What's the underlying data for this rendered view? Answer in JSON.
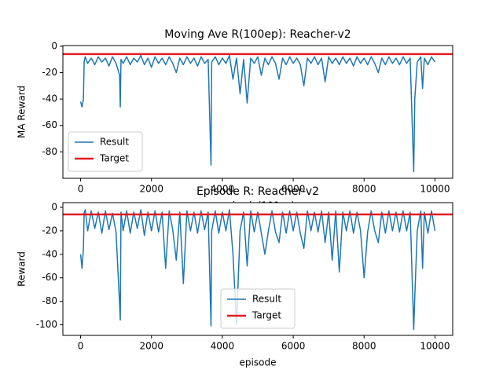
{
  "chart_data": [
    {
      "type": "line",
      "title": "Moving Ave R(100ep): Reacher-v2",
      "x_label": "episode(100ep)",
      "y_label": "MA Reward",
      "x": [
        0,
        40,
        80,
        100,
        130,
        200,
        300,
        400,
        500,
        600,
        700,
        800,
        900,
        1000,
        1100,
        1120,
        1140,
        1200,
        1300,
        1400,
        1500,
        1600,
        1700,
        1800,
        1900,
        2000,
        2100,
        2200,
        2300,
        2400,
        2500,
        2600,
        2700,
        2800,
        2900,
        3000,
        3100,
        3200,
        3300,
        3400,
        3500,
        3600,
        3680,
        3700,
        3800,
        3900,
        4000,
        4100,
        4200,
        4300,
        4400,
        4500,
        4600,
        4700,
        4800,
        4900,
        5000,
        5100,
        5200,
        5300,
        5400,
        5500,
        5600,
        5700,
        5800,
        5900,
        6000,
        6100,
        6200,
        6300,
        6400,
        6500,
        6600,
        6700,
        6800,
        6900,
        7000,
        7100,
        7200,
        7300,
        7400,
        7500,
        7600,
        7700,
        7800,
        7900,
        8000,
        8100,
        8200,
        8300,
        8400,
        8500,
        8600,
        8700,
        8800,
        8900,
        9000,
        9100,
        9200,
        9300,
        9400,
        9430,
        9500,
        9600,
        9650,
        9700,
        9800,
        9900,
        10000
      ],
      "series": [
        {
          "name": "Result",
          "color": "#1f77b4",
          "values": [
            -42,
            -46,
            -40,
            -12,
            -8,
            -13,
            -9,
            -14,
            -8,
            -12,
            -9,
            -15,
            -8,
            -13,
            -22,
            -46,
            -10,
            -13,
            -8,
            -14,
            -9,
            -12,
            -7,
            -14,
            -9,
            -16,
            -8,
            -13,
            -9,
            -14,
            -8,
            -13,
            -20,
            -9,
            -14,
            -8,
            -13,
            -9,
            -15,
            -8,
            -13,
            -10,
            -90,
            -12,
            -8,
            -14,
            -9,
            -13,
            -7,
            -25,
            -9,
            -36,
            -10,
            -43,
            -9,
            -13,
            -8,
            -22,
            -9,
            -14,
            -8,
            -13,
            -25,
            -9,
            -14,
            -8,
            -13,
            -9,
            -14,
            -30,
            -9,
            -13,
            -8,
            -14,
            -9,
            -27,
            -8,
            -13,
            -9,
            -14,
            -8,
            -13,
            -9,
            -15,
            -8,
            -13,
            -9,
            -14,
            -8,
            -13,
            -20,
            -9,
            -14,
            -8,
            -13,
            -9,
            -14,
            -8,
            -13,
            -9,
            -95,
            -40,
            -12,
            -8,
            -32,
            -9,
            -14,
            -8,
            -12
          ]
        }
      ],
      "target": {
        "name": "Target",
        "color": "#e41a1c",
        "value": -6
      },
      "xlim": [
        -500,
        10500
      ],
      "ylim": [
        -100,
        0.5
      ],
      "xticks": [
        0,
        2000,
        4000,
        6000,
        8000,
        10000
      ],
      "yticks": [
        0,
        -20,
        -40,
        -60,
        -80
      ],
      "legend_position": "lower left"
    },
    {
      "type": "line",
      "title": "Episode R: Reacher-v2",
      "x_label": "episode",
      "y_label": "Reward",
      "x": [
        0,
        40,
        80,
        100,
        130,
        200,
        300,
        400,
        500,
        600,
        700,
        800,
        900,
        1000,
        1100,
        1120,
        1140,
        1200,
        1300,
        1400,
        1500,
        1600,
        1700,
        1800,
        1900,
        2000,
        2100,
        2200,
        2300,
        2400,
        2500,
        2600,
        2700,
        2800,
        2900,
        3000,
        3100,
        3200,
        3300,
        3400,
        3500,
        3600,
        3680,
        3700,
        3800,
        3900,
        4000,
        4100,
        4200,
        4300,
        4400,
        4500,
        4600,
        4700,
        4800,
        4900,
        5000,
        5100,
        5200,
        5300,
        5400,
        5500,
        5600,
        5700,
        5800,
        5900,
        6000,
        6100,
        6200,
        6300,
        6400,
        6500,
        6600,
        6700,
        6800,
        6900,
        7000,
        7100,
        7200,
        7300,
        7400,
        7500,
        7600,
        7700,
        7800,
        7900,
        8000,
        8100,
        8200,
        8300,
        8400,
        8500,
        8600,
        8700,
        8800,
        8900,
        9000,
        9100,
        9200,
        9300,
        9400,
        9430,
        9500,
        9600,
        9650,
        9700,
        9800,
        9900,
        10000
      ],
      "series": [
        {
          "name": "Result",
          "color": "#1f77b4",
          "values": [
            -40,
            -52,
            -35,
            -5,
            -2,
            -20,
            -3,
            -18,
            -4,
            -22,
            -3,
            -19,
            -5,
            -21,
            -82,
            -96,
            -4,
            -20,
            -3,
            -22,
            -4,
            -18,
            -2,
            -24,
            -4,
            -20,
            -3,
            -21,
            -4,
            -52,
            -3,
            -19,
            -45,
            -4,
            -65,
            -3,
            -20,
            -4,
            -22,
            -3,
            -19,
            -4,
            -101,
            -20,
            -3,
            -22,
            -4,
            -20,
            -2,
            -40,
            -100,
            -20,
            -4,
            -50,
            -3,
            -21,
            -4,
            -22,
            -40,
            -20,
            -3,
            -21,
            -30,
            -4,
            -22,
            -3,
            -20,
            -4,
            -22,
            -35,
            -3,
            -20,
            -4,
            -21,
            -3,
            -30,
            -4,
            -45,
            -3,
            -55,
            -4,
            -20,
            -3,
            -22,
            -4,
            -20,
            -60,
            -21,
            -3,
            -20,
            -30,
            -4,
            -22,
            -3,
            -20,
            -4,
            -21,
            -3,
            -20,
            -4,
            -104,
            -76,
            -20,
            -3,
            -52,
            -4,
            -22,
            -3,
            -20
          ]
        }
      ],
      "target": {
        "name": "Target",
        "color": "#e41a1c",
        "value": -6
      },
      "xlim": [
        -500,
        10500
      ],
      "ylim": [
        -109,
        4
      ],
      "xticks": [
        0,
        2000,
        4000,
        6000,
        8000,
        10000
      ],
      "yticks": [
        0,
        -20,
        -40,
        -60,
        -80,
        -100
      ],
      "legend_position": "lower center"
    }
  ]
}
